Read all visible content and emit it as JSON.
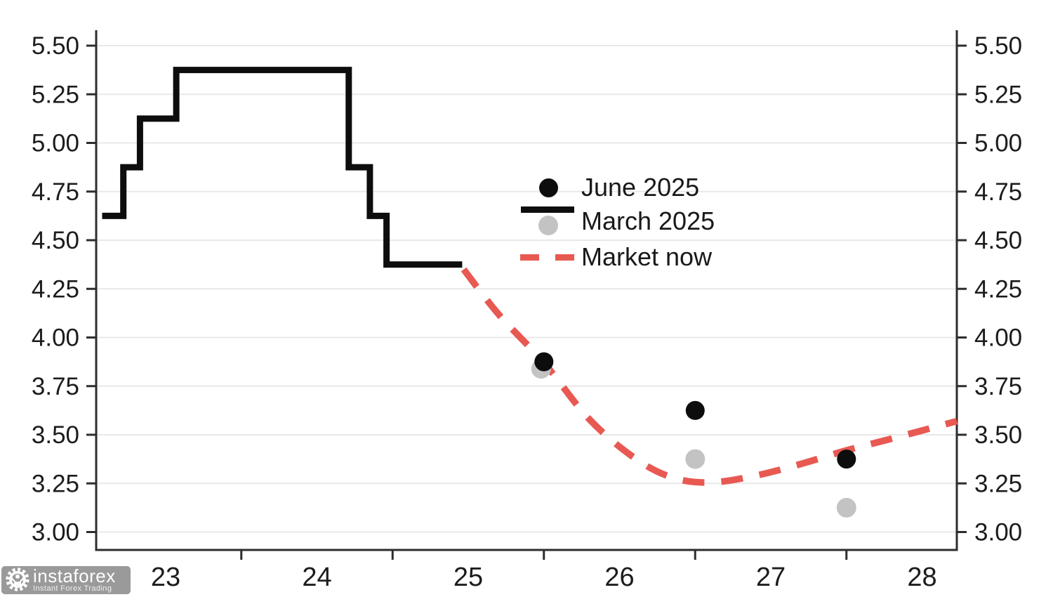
{
  "watermark": {
    "brand": "instaforex",
    "tagline": "Instant Forex Trading",
    "logo_icon": "gear-person-icon",
    "badge_color": "#9a9a9a"
  },
  "chart_data": {
    "type": "line",
    "title": "",
    "description": "Fed funds rate history (step line), FOMC dot-plot medians (June 2025 black dots, March 2025 gray dots) and market-implied path (red dashed), percent",
    "grid": "horizontal",
    "legend_position": "center-right of plot",
    "x_axis": {
      "tick_label_years": [
        23,
        24,
        25,
        26,
        27,
        28
      ],
      "tick_labels": [
        "23",
        "24",
        "25",
        "26",
        "27",
        "28"
      ],
      "minor_tick_years": [
        23.5,
        24.5,
        25.5,
        26.5,
        27.5
      ],
      "range": [
        22.54,
        28.23
      ]
    },
    "y_axis": {
      "tick_values": [
        3.0,
        3.25,
        3.5,
        3.75,
        4.0,
        4.25,
        4.5,
        4.75,
        5.0,
        5.25,
        5.5
      ],
      "tick_labels": [
        "3.00",
        "3.25",
        "3.50",
        "3.75",
        "4.00",
        "4.25",
        "4.50",
        "4.75",
        "5.00",
        "5.25",
        "5.50"
      ],
      "range": [
        2.92,
        5.6
      ],
      "sides": "both"
    },
    "legend": [
      {
        "label": "June 2025",
        "marker": "black-dot"
      },
      {
        "label": "March 2025",
        "marker": "black-line-and-gray-dot"
      },
      {
        "label": "Market now",
        "marker": "red-dashes"
      }
    ],
    "series": [
      {
        "name": "policy-rate-history",
        "type": "step-line",
        "color": "#0d0d0d",
        "steps": [
          {
            "from": 22.58,
            "to": 22.72,
            "rate": 4.625
          },
          {
            "from": 22.72,
            "to": 22.83,
            "rate": 4.875
          },
          {
            "from": 22.83,
            "to": 23.07,
            "rate": 5.125
          },
          {
            "from": 23.07,
            "to": 24.21,
            "rate": 5.375
          },
          {
            "from": 24.21,
            "to": 24.35,
            "rate": 4.875
          },
          {
            "from": 24.35,
            "to": 24.46,
            "rate": 4.625
          },
          {
            "from": 24.46,
            "to": 24.96,
            "rate": 4.375
          }
        ]
      },
      {
        "name": "June 2025",
        "type": "scatter",
        "color": "#0d0d0d",
        "points": [
          {
            "x": 25.5,
            "y": 3.875
          },
          {
            "x": 26.5,
            "y": 3.625
          },
          {
            "x": 27.5,
            "y": 3.375
          }
        ]
      },
      {
        "name": "March 2025",
        "type": "scatter",
        "color": "#c3c3c3",
        "points": [
          {
            "x": 25.5,
            "y": 3.875
          },
          {
            "x": 26.5,
            "y": 3.375
          },
          {
            "x": 27.5,
            "y": 3.125
          }
        ]
      },
      {
        "name": "Market now",
        "type": "dashed-line",
        "color": "#e85952",
        "points": [
          {
            "x": 24.97,
            "y": 4.35
          },
          {
            "x": 25.2,
            "y": 4.12
          },
          {
            "x": 25.5,
            "y": 3.87
          },
          {
            "x": 25.8,
            "y": 3.58
          },
          {
            "x": 26.1,
            "y": 3.38
          },
          {
            "x": 26.35,
            "y": 3.28
          },
          {
            "x": 26.6,
            "y": 3.255
          },
          {
            "x": 26.9,
            "y": 3.29
          },
          {
            "x": 27.2,
            "y": 3.35
          },
          {
            "x": 27.5,
            "y": 3.42
          },
          {
            "x": 27.8,
            "y": 3.48
          },
          {
            "x": 28.23,
            "y": 3.57
          }
        ]
      }
    ],
    "colors": {
      "history_black": "#0d0d0d",
      "june_dot": "#0d0d0d",
      "march_dot": "#c3c3c3",
      "market_red": "#e85952",
      "grid": "#e8e8e8",
      "axis": "#2d2d2d",
      "tick_label": "#1c1c1c"
    }
  }
}
